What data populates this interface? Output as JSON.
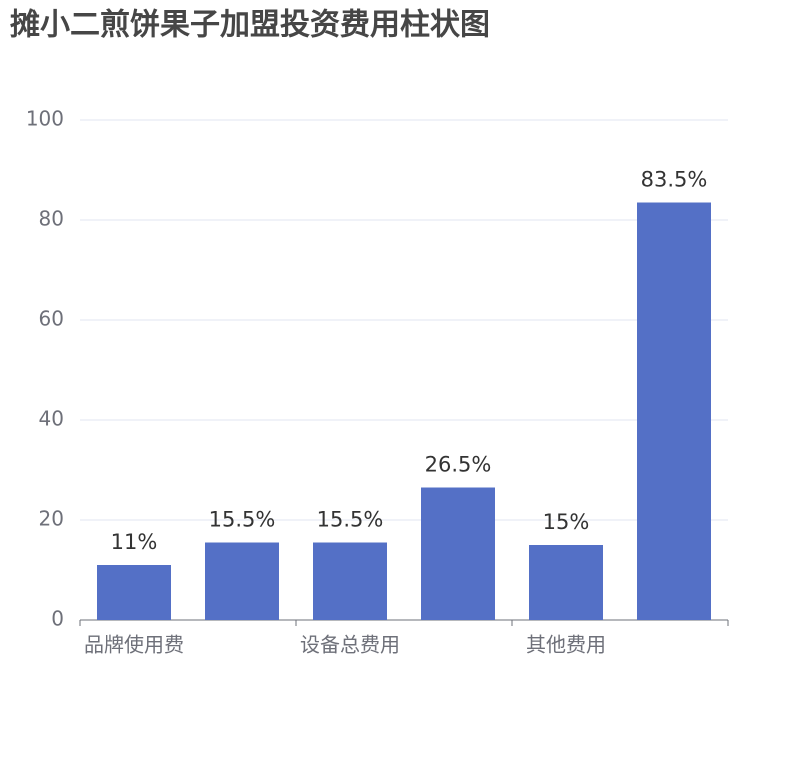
{
  "chart_data": {
    "type": "bar",
    "title": "摊小二煎饼果子加盟投资费用柱状图",
    "categories": [
      "品牌使用费",
      null,
      "设备总费用",
      null,
      "其他费用",
      null
    ],
    "values": [
      11,
      15.5,
      15.5,
      26.5,
      15,
      83.5
    ],
    "value_labels": [
      "11%",
      "15.5%",
      "15.5%",
      "26.5%",
      "15%",
      "83.5%"
    ],
    "color": "#5470c6",
    "ylim": [
      0,
      100
    ],
    "yticks": [
      0,
      20,
      40,
      60,
      80,
      100
    ],
    "grid": true
  }
}
